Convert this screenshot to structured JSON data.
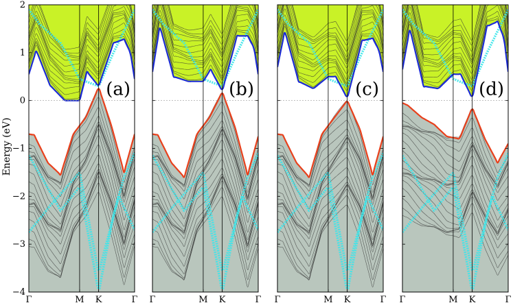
{
  "chart_data": {
    "type": "line",
    "ylabel": "Energy (eV)",
    "ylim": [
      -4,
      2
    ],
    "y_ticks": [
      "2",
      "1",
      "0",
      "−1",
      "−2",
      "−3",
      "−4"
    ],
    "y_tick_values": [
      2,
      1,
      0,
      -1,
      -2,
      -3,
      -4
    ],
    "k_path": [
      {
        "label": "Γ",
        "k": 0
      },
      {
        "label": "M",
        "k": 0.48
      },
      {
        "label": "K",
        "k": 0.66
      },
      {
        "label": "Γ",
        "k": 1
      }
    ],
    "fermi_level": 0,
    "colors": {
      "conduction_region": "#c9f227",
      "valence_region": "#b9c6bd",
      "top_valence_band": "#e8401c",
      "bottom_conduction_band": "#1b2ad6",
      "projected_band": "#3ce6ea",
      "bulk_bands": "#333333"
    },
    "panels": [
      {
        "tag": "(a)",
        "cb": {
          "k": [
            0,
            0.07,
            0.2,
            0.34,
            0.48,
            0.55,
            0.66,
            0.8,
            0.9,
            0.96,
            1
          ],
          "e": [
            0.55,
            1.05,
            0.32,
            0.0,
            0.0,
            0.6,
            0.3,
            1.2,
            1.28,
            1.0,
            0.45
          ]
        },
        "vb": {
          "k": [
            0,
            0.05,
            0.18,
            0.3,
            0.42,
            0.54,
            0.66,
            0.78,
            0.9,
            1
          ],
          "e": [
            -0.7,
            -0.72,
            -1.3,
            -1.55,
            -0.7,
            -0.35,
            0.28,
            -0.52,
            -1.5,
            -0.7
          ]
        }
      },
      {
        "tag": "(b)",
        "cb": {
          "k": [
            0,
            0.07,
            0.2,
            0.34,
            0.48,
            0.55,
            0.66,
            0.8,
            0.9,
            0.96,
            1
          ],
          "e": [
            0.6,
            1.55,
            0.5,
            0.4,
            0.4,
            0.65,
            0.2,
            1.35,
            1.35,
            1.1,
            0.55
          ]
        },
        "vb": {
          "k": [
            0,
            0.05,
            0.18,
            0.3,
            0.42,
            0.54,
            0.66,
            0.78,
            0.9,
            1
          ],
          "e": [
            -0.7,
            -0.72,
            -1.3,
            -1.6,
            -0.7,
            -0.35,
            0.18,
            -0.55,
            -1.55,
            -0.75
          ]
        }
      },
      {
        "tag": "(c)",
        "cb": {
          "k": [
            0,
            0.07,
            0.2,
            0.34,
            0.48,
            0.55,
            0.66,
            0.8,
            0.9,
            0.96,
            1
          ],
          "e": [
            0.7,
            1.45,
            0.4,
            0.25,
            0.5,
            0.5,
            0.05,
            1.25,
            1.3,
            1.05,
            0.6
          ]
        },
        "vb": {
          "k": [
            0,
            0.05,
            0.18,
            0.3,
            0.42,
            0.54,
            0.66,
            0.78,
            0.9,
            1
          ],
          "e": [
            -0.7,
            -0.72,
            -1.3,
            -1.6,
            -0.7,
            -0.35,
            0.0,
            -0.6,
            -1.55,
            -0.75
          ]
        }
      },
      {
        "tag": "(d)",
        "cb": {
          "k": [
            0,
            0.07,
            0.2,
            0.34,
            0.48,
            0.55,
            0.66,
            0.8,
            0.9,
            0.96,
            1
          ],
          "e": [
            0.65,
            1.5,
            0.3,
            0.25,
            0.55,
            0.55,
            0.05,
            1.55,
            1.65,
            1.3,
            0.6
          ]
        },
        "vb": {
          "k": [
            0,
            0.05,
            0.18,
            0.3,
            0.42,
            0.54,
            0.66,
            0.78,
            0.9,
            1
          ],
          "e": [
            -0.05,
            -0.1,
            -0.35,
            -0.5,
            -0.75,
            -0.8,
            -0.15,
            -0.8,
            -1.3,
            -0.9
          ]
        }
      }
    ]
  }
}
